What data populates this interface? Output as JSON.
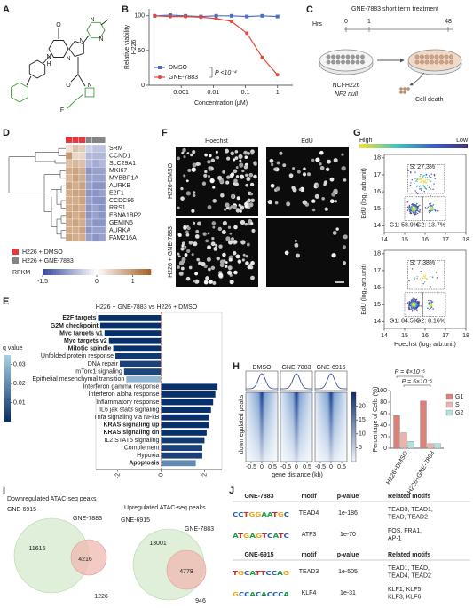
{
  "panel_labels": [
    "A",
    "B",
    "C",
    "D",
    "E",
    "F",
    "G",
    "H",
    "I",
    "J"
  ],
  "panel_a": {
    "atoms": [
      "O",
      "N",
      "H",
      "N",
      "N",
      "N",
      "N",
      "O",
      "N",
      "F"
    ]
  },
  "chart_data": [
    {
      "type": "line",
      "y_label": [
        "Relative viability",
        "H226"
      ],
      "x_label": "Concentration (μM)",
      "log_x": true,
      "x": [
        0.00015,
        0.00046,
        0.00137,
        0.0041,
        0.0123,
        0.037,
        0.111,
        0.333,
        1
      ],
      "series": [
        {
          "name": "DMSO",
          "color": "#4a6fc2",
          "values": [
            100,
            101,
            100,
            99,
            100,
            100,
            99,
            100,
            99
          ]
        },
        {
          "name": "GNE-7883",
          "color": "#e5473c",
          "values": [
            100,
            99,
            99,
            98,
            96,
            92,
            75,
            40,
            15
          ]
        }
      ],
      "xlim": [
        0.0001,
        3
      ],
      "xticks": [
        0.001,
        0.01,
        0.1,
        1
      ],
      "ylim": [
        0,
        110
      ],
      "yticks": [
        0,
        50,
        100
      ],
      "annotation": "P <10⁻⁴"
    },
    {
      "type": "heatmap",
      "rows": [
        "SRM",
        "CCND1",
        "SLC29A1",
        "MKI67",
        "MYBBP1A",
        "AURKB",
        "E2F1",
        "CCDC86",
        "RRS1",
        "EBNA1BP2",
        "GEMIN5",
        "AURKA",
        "FAM216A"
      ],
      "groups": [
        {
          "name": "H226 + DMSO",
          "color": "#e5373c"
        },
        {
          "name": "H226 + GNE-7883",
          "color": "#858585"
        }
      ],
      "column_groups": [
        0,
        0,
        0,
        1,
        1,
        1
      ],
      "values": [
        [
          0.3,
          0.6,
          0.5,
          -0.4,
          -0.5,
          -0.5
        ],
        [
          1.0,
          0.4,
          0.4,
          -0.6,
          -0.6,
          -0.6
        ],
        [
          0.6,
          0.7,
          0.6,
          -0.6,
          -0.7,
          -0.6
        ],
        [
          0.8,
          0.9,
          0.8,
          -0.9,
          -0.8,
          -0.8
        ],
        [
          0.7,
          0.9,
          0.8,
          -0.8,
          -0.8,
          -0.8
        ],
        [
          0.9,
          0.8,
          0.9,
          -0.8,
          -0.9,
          -0.9
        ],
        [
          0.8,
          0.9,
          0.9,
          -0.9,
          -0.9,
          -0.8
        ],
        [
          0.8,
          0.8,
          0.9,
          -0.8,
          -0.9,
          -0.9
        ],
        [
          0.8,
          0.9,
          0.8,
          -0.9,
          -0.8,
          -0.9
        ],
        [
          0.9,
          0.8,
          0.9,
          -0.9,
          -0.8,
          -0.9
        ],
        [
          0.8,
          0.9,
          0.8,
          -0.8,
          -0.9,
          -0.9
        ],
        [
          0.8,
          0.8,
          0.9,
          -0.9,
          -0.8,
          -0.8
        ],
        [
          0.9,
          0.8,
          0.8,
          -0.8,
          -0.9,
          -0.8
        ]
      ],
      "colorbar_label": "RPKM",
      "clim": [
        -1.5,
        1.5
      ],
      "cticks": [
        -1.5,
        0,
        1
      ],
      "colors": [
        "#3b4ea0",
        "#ffffff",
        "#a8652a"
      ]
    },
    {
      "type": "bar",
      "orientation": "horizontal",
      "title": "H226 + GNE-7883 vs H226 + DMSO",
      "categories": [
        "E2F targets",
        "G2M checkpoint",
        "Myc targets v1",
        "Myc targets v2",
        "Mitotic spindle",
        "Unfolded protein response",
        "DNA repair",
        "mTorc1 signaling",
        "Epithelial mesenchymal transition",
        "Interferon gamma response",
        "Interferon alpha response",
        "Inflammatory response",
        "IL6 jak stat3 signaling",
        "Tnfa signaling via NFkB",
        "KRAS signaling up",
        "KRAS signaling dn",
        "IL2 STAT5 signaling",
        "Complement",
        "Hypoxia",
        "Apoptosis"
      ],
      "values": [
        -2.9,
        -2.8,
        -2.6,
        -2.4,
        -2.2,
        -2.1,
        -1.9,
        -1.7,
        -1.6,
        2.6,
        2.5,
        2.4,
        2.3,
        2.2,
        2.2,
        2.1,
        2.0,
        1.9,
        1.9,
        1.6
      ],
      "q_values": [
        0,
        0,
        0,
        0,
        0,
        0.002,
        0.004,
        0.005,
        0.03,
        0,
        0,
        0,
        0,
        0,
        0,
        0,
        0.002,
        0.004,
        0.004,
        0.02
      ],
      "bold": [
        true,
        true,
        true,
        true,
        true,
        false,
        false,
        false,
        false,
        false,
        false,
        false,
        false,
        false,
        true,
        true,
        false,
        false,
        false,
        true
      ],
      "xlim": [
        -3,
        2.8
      ],
      "xticks": [
        -2,
        0,
        2
      ],
      "colorbar_label": "q value",
      "clim": [
        0,
        0.035
      ],
      "cticks": [
        0.01,
        0.02,
        0.03
      ],
      "colors": [
        "#08306b",
        "#a6cee3"
      ]
    },
    {
      "type": "bar",
      "categories": [
        "H226+DMSO",
        "H226+GNE-7883"
      ],
      "series": [
        {
          "name": "G1",
          "color": "#d9817b",
          "values": [
            57,
            82
          ]
        },
        {
          "name": "S",
          "color": "#ebb3ae",
          "values": [
            27,
            8
          ]
        },
        {
          "name": "G2",
          "color": "#b3e0dd",
          "values": [
            12,
            8
          ]
        }
      ],
      "ylim": [
        0,
        100
      ],
      "yticks": [
        0,
        20,
        40,
        60,
        80,
        100
      ],
      "y_label": "Percentage of Cells (%)",
      "annotations": [
        "P = 4×10⁻⁵",
        "P = 5×10⁻⁵"
      ],
      "legend": "upper right"
    }
  ],
  "panel_c": {
    "title": "GNE-7883 short term treatment",
    "time_label": "Hrs",
    "times": [
      0,
      1,
      48
    ],
    "cell_line": "NCI-H226",
    "genotype": "NF2 null",
    "outcome": "Cell death"
  },
  "panel_f": {
    "columns": [
      "Hoechst",
      "EdU"
    ],
    "rows": [
      "H226-DMSO",
      "H226 + GNE-7883"
    ]
  },
  "panel_g": {
    "colorbar_labels": [
      "High",
      "Low"
    ],
    "x_label": "Hoechst (log₂ arb.unit)",
    "y_label": "EdU (log₂ arb.unit)",
    "xlim": [
      14,
      18
    ],
    "xticks": [
      14,
      15,
      16,
      17,
      18
    ],
    "ylim": [
      13.6,
      18.2
    ],
    "yticks": [
      14,
      15,
      16,
      17,
      18
    ],
    "plots": [
      {
        "gates": [
          "S: 27.3%",
          "G1: 58.9%",
          "G2: 13.7%"
        ]
      },
      {
        "gates": [
          "S: 7.38%",
          "G1: 84.5%",
          "G2: 8.16%"
        ]
      }
    ]
  },
  "panel_h": {
    "titles": [
      "DMSO",
      "GNE-7883",
      "GNE-6915"
    ],
    "y_label": "downregulated peaks",
    "x_label": "gene distance (kb)",
    "xlim": [
      -0.75,
      0.75
    ],
    "xticks": [
      -0.5,
      0,
      0.5
    ],
    "clim": [
      0,
      25
    ],
    "cticks": [
      5,
      10,
      15,
      20
    ]
  },
  "panel_i": {
    "venns": [
      {
        "title": "Downregulated ATAC-seq peaks",
        "a": "GNE-6915",
        "b": "GNE-7883",
        "only_a": 11615,
        "both": 4216,
        "only_b": 1226
      },
      {
        "title": "Upregulated ATAC-seq peaks",
        "a": "GNE-6915",
        "b": "GNE-7883",
        "only_a": 13001,
        "both": 4778,
        "only_b": 946
      }
    ]
  },
  "panel_j": {
    "headers": [
      "motif",
      "p-value",
      "Related motifs"
    ],
    "groups": [
      {
        "name": "GNE-7883",
        "rows": [
          {
            "logo": "CCTGGAATGC",
            "motif": "TEAD4",
            "p": "1e-186",
            "related": [
              "TEAD3, TEAD1,",
              "TEAD, TEAD2"
            ]
          },
          {
            "logo": "ATGAGTCATC",
            "motif": "ATF3",
            "p": "1e-70",
            "related": [
              "FOS, FRA1,",
              "AP-1"
            ]
          }
        ]
      },
      {
        "name": "GNE-6915",
        "rows": [
          {
            "logo": "TGCATTCCAG",
            "motif": "TEAD3",
            "p": "1e-505",
            "related": [
              "TEAD1, TEAD,",
              "TEAD4, TEAD2"
            ]
          },
          {
            "logo": "GCCACACCCA",
            "motif": "KLF4",
            "p": "1e-31",
            "related": [
              "KLF1, KLF5,",
              "KLF3, KLF6"
            ]
          }
        ]
      }
    ]
  }
}
